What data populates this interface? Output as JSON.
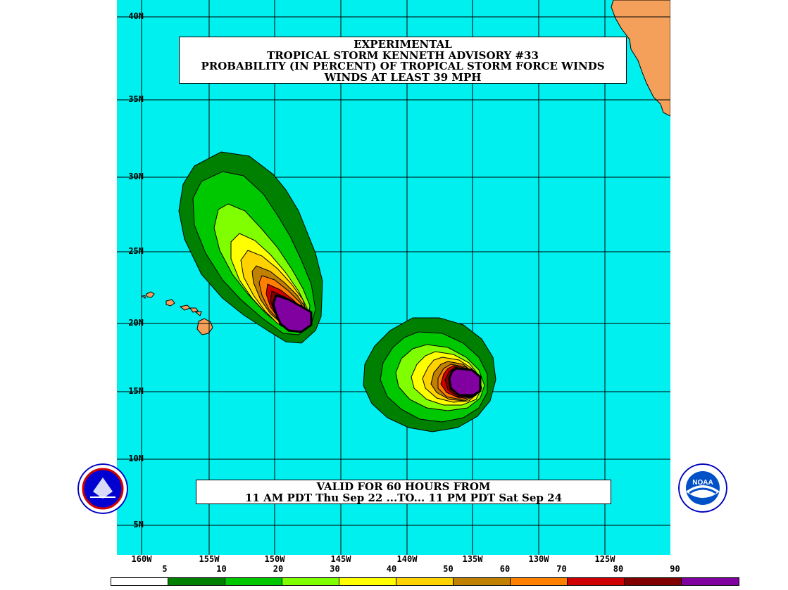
{
  "title": {
    "lines": [
      "EXPERIMENTAL",
      "TROPICAL STORM KENNETH ADVISORY #33",
      "PROBABILITY (IN PERCENT) OF TROPICAL STORM FORCE WINDS",
      "WINDS AT LEAST 39 MPH"
    ]
  },
  "valid": {
    "lines": [
      "VALID FOR 60 HOURS FROM",
      "11 AM PDT Thu Sep 22 ...TO... 11 PM PDT Sat Sep 24"
    ]
  },
  "lat_labels": [
    "40N",
    "35N",
    "30N",
    "25N",
    "20N",
    "15N",
    "10N",
    "5N"
  ],
  "lon_labels": [
    "160W",
    "155W",
    "150W",
    "145W",
    "140W",
    "135W",
    "130W",
    "125W"
  ],
  "legend": {
    "labels": [
      "5",
      "10",
      "20",
      "30",
      "40",
      "50",
      "60",
      "70",
      "80",
      "90"
    ],
    "colors": [
      "#ffffff",
      "#008000",
      "#00c800",
      "#80ff00",
      "#ffff00",
      "#ffd200",
      "#c08000",
      "#ff8000",
      "#d00000",
      "#800000",
      "#8000a0"
    ]
  },
  "colors": {
    "ocean": "#00f0f0",
    "land": "#f5a05a",
    "grid": "#000000"
  },
  "logos": {
    "nws": "nws-logo",
    "noaa": "noaa-logo"
  }
}
